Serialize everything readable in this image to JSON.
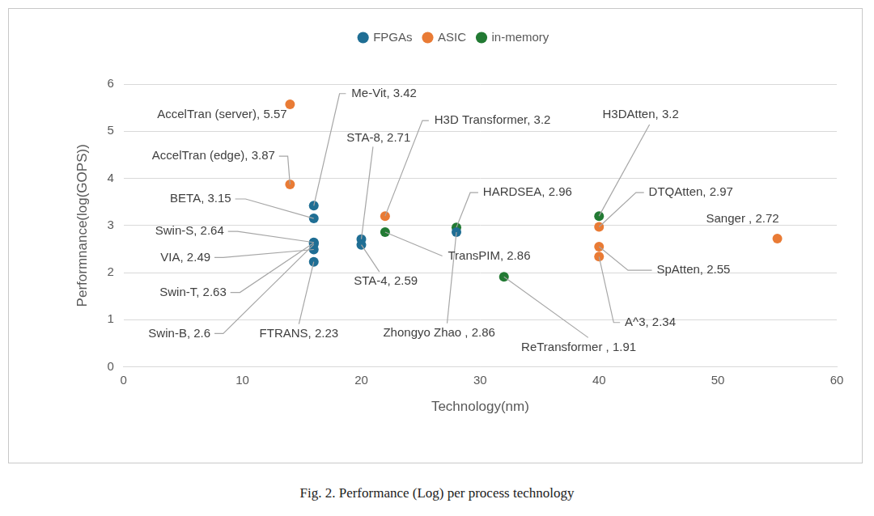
{
  "chart_data": {
    "type": "scatter",
    "x_label": "Technology(nm)",
    "y_label": "Performnance(log(GOPS))",
    "caption": "Fig. 2.  Performance (Log) per process technology",
    "series": [
      {
        "name": "FPGAs",
        "color": "#1f6e94",
        "x": [
          16,
          16,
          16,
          16,
          16,
          16,
          16,
          20,
          20,
          28
        ],
        "values": [
          3.42,
          3.15,
          2.64,
          2.49,
          2.63,
          2.6,
          2.23,
          2.71,
          2.59,
          2.86
        ],
        "value_labels": [
          "Me-Vit, 3.42",
          "BETA, 3.15",
          "Swin-S, 2.64",
          "VIA, 2.49",
          "Swin-T, 2.63",
          "Swin-B, 2.6",
          "FTRANS, 2.23",
          "STA-8, 2.71",
          "STA-4, 2.59",
          "Zhongyo Zhao , 2.86"
        ]
      },
      {
        "name": "ASIC",
        "color": "#e97b35",
        "x": [
          14,
          14,
          22,
          40,
          40,
          40,
          55
        ],
        "values": [
          5.57,
          3.87,
          3.2,
          2.97,
          2.55,
          2.34,
          2.72
        ],
        "value_labels": [
          "AccelTran (server), 5.57",
          "AccelTran (edge), 3.87",
          "H3D Transformer, 3.2",
          "DTQAtten, 2.97",
          "SpAtten, 2.55",
          "A^3, 2.34",
          "Sanger , 2.72"
        ]
      },
      {
        "name": "in-memory",
        "color": "#227a33",
        "x": [
          22,
          28,
          32,
          40
        ],
        "values": [
          2.86,
          2.96,
          1.91,
          3.2
        ],
        "value_labels": [
          "TransPIM, 2.86",
          "HARDSEA, 2.96",
          "ReTransformer , 1.91",
          "H3DAtten, 3.2"
        ]
      }
    ],
    "xlim": [
      0,
      60
    ],
    "xticks": [
      0,
      10,
      20,
      30,
      40,
      50,
      60
    ],
    "ylim": [
      0,
      6
    ],
    "yticks": [
      0,
      1,
      2,
      3,
      4,
      5,
      6
    ],
    "grid": "y",
    "legend": "top",
    "marker": "circle",
    "data_labels": true
  }
}
